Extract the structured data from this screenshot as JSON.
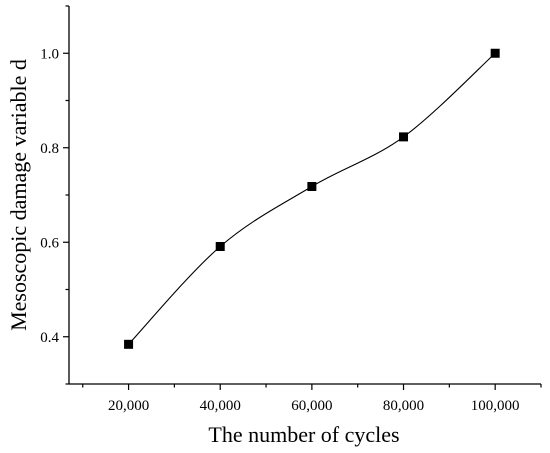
{
  "chart_data": {
    "type": "line",
    "title": "",
    "xlabel": "The number of cycles",
    "ylabel": "Mesoscopic damage variable d",
    "x": [
      20000,
      40000,
      60000,
      80000,
      100000
    ],
    "x_tick_values": [
      20000,
      40000,
      60000,
      80000,
      100000
    ],
    "x_tick_labels": [
      "20,000",
      "40,000",
      "60,000",
      "80,000",
      "100,000"
    ],
    "y_tick_values": [
      0.4,
      0.6,
      0.8,
      1.0
    ],
    "y_tick_labels": [
      "0.4",
      "0.6",
      "0.8",
      "1.0"
    ],
    "xlim": [
      7000,
      110000
    ],
    "ylim": [
      0.3,
      1.1
    ],
    "grid": false,
    "series": [
      {
        "values": [
          0.384,
          0.591,
          0.718,
          0.823,
          1.0
        ],
        "marker": "square",
        "line": "smooth",
        "color": "#000000"
      }
    ]
  }
}
